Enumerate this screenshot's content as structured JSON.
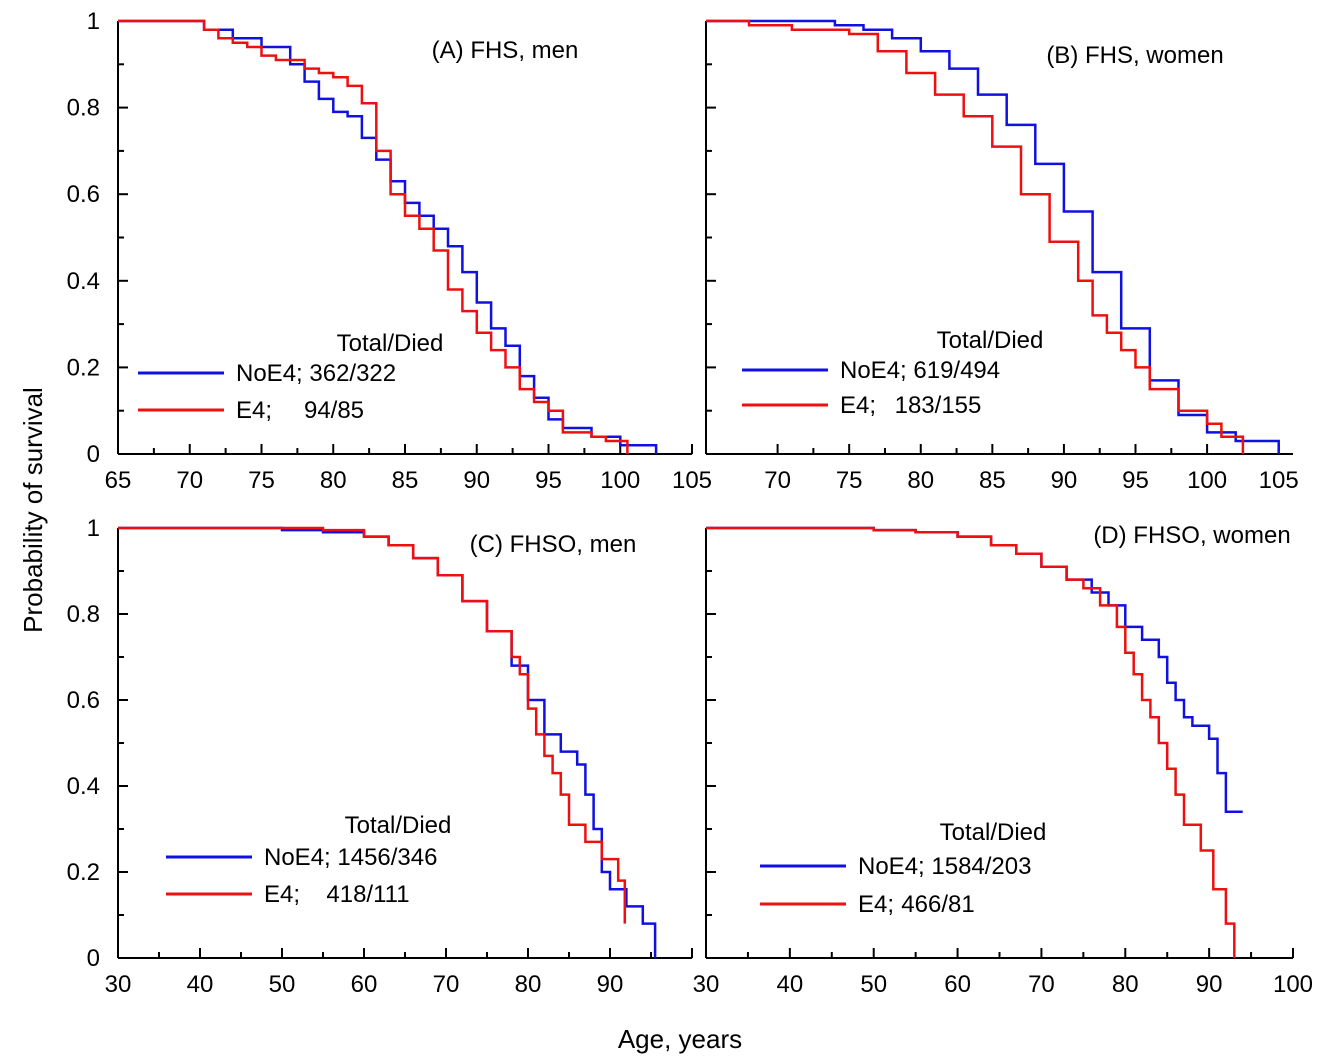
{
  "figure": {
    "ylabel": "Probability of survival",
    "xlabel": "Age, years"
  },
  "chart_data": [
    {
      "type": "line",
      "title": "(A) FHS, men",
      "xlim": [
        65,
        105
      ],
      "ylim": [
        0,
        1
      ],
      "xticks": [
        65,
        70,
        75,
        80,
        85,
        90,
        95,
        100,
        105
      ],
      "xtick_labels": [
        "65",
        "70",
        "75",
        "80",
        "85",
        "90",
        "95",
        "100",
        "105"
      ],
      "yticks": [
        0,
        0.2,
        0.4,
        0.6,
        0.8,
        1
      ],
      "ytick_labels": [
        "0",
        "0.2",
        "0.4",
        "0.6",
        "0.8",
        "1"
      ],
      "legend_header": "Total/Died",
      "legend_position": "bottom-left",
      "grid": false,
      "step": true,
      "series": [
        {
          "name": "NoE4",
          "counts": "362/322",
          "color": "#1010e0",
          "x": [
            65,
            69,
            71,
            73,
            75,
            77,
            78,
            79,
            80,
            81,
            82,
            83,
            84,
            85,
            86,
            87,
            88,
            89,
            90,
            91,
            92,
            93,
            94,
            95,
            96,
            98,
            100,
            102.5
          ],
          "y": [
            1,
            1,
            0.98,
            0.96,
            0.94,
            0.9,
            0.86,
            0.82,
            0.79,
            0.78,
            0.73,
            0.68,
            0.63,
            0.58,
            0.55,
            0.52,
            0.48,
            0.42,
            0.35,
            0.29,
            0.25,
            0.18,
            0.13,
            0.08,
            0.06,
            0.04,
            0.02,
            0
          ]
        },
        {
          "name": "E4",
          "counts": "94/85",
          "color": "#ee1010",
          "x": [
            65,
            70,
            71,
            72,
            73,
            74,
            75,
            76,
            77,
            78,
            79,
            80,
            81,
            82,
            83,
            84,
            85,
            86,
            87,
            88,
            89,
            90,
            91,
            92,
            93,
            94,
            95,
            96,
            97,
            98,
            99,
            100.5
          ],
          "y": [
            1,
            1,
            0.98,
            0.96,
            0.95,
            0.94,
            0.92,
            0.91,
            0.91,
            0.89,
            0.88,
            0.87,
            0.85,
            0.81,
            0.7,
            0.6,
            0.55,
            0.52,
            0.47,
            0.38,
            0.33,
            0.28,
            0.24,
            0.2,
            0.15,
            0.12,
            0.1,
            0.05,
            0.05,
            0.04,
            0.03,
            0
          ]
        }
      ]
    },
    {
      "type": "line",
      "title": "(B) FHS, women",
      "xlim": [
        65,
        106
      ],
      "ylim": [
        0,
        1
      ],
      "xticks": [
        70,
        75,
        80,
        85,
        90,
        95,
        100,
        105
      ],
      "xtick_labels": [
        "70",
        "75",
        "80",
        "85",
        "90",
        "95",
        "100",
        "105"
      ],
      "yticks": [
        0,
        0.2,
        0.4,
        0.6,
        0.8,
        1
      ],
      "ytick_labels": [],
      "legend_header": "Total/Died",
      "legend_position": "bottom-left",
      "grid": false,
      "step": true,
      "series": [
        {
          "name": "NoE4",
          "counts": "619/494",
          "color": "#1010e0",
          "x": [
            65,
            70,
            74,
            76,
            78,
            80,
            82,
            84,
            86,
            88,
            90,
            92,
            94,
            96,
            98,
            100,
            102,
            105
          ],
          "y": [
            1,
            1,
            0.99,
            0.98,
            0.96,
            0.93,
            0.89,
            0.83,
            0.76,
            0.67,
            0.56,
            0.42,
            0.29,
            0.17,
            0.09,
            0.05,
            0.03,
            0
          ]
        },
        {
          "name": "E4",
          "counts": "183/155",
          "color": "#ee1010",
          "x": [
            65,
            68,
            71,
            75,
            77,
            79,
            81,
            83,
            85,
            87,
            89,
            91,
            92,
            93,
            94,
            95,
            96,
            98,
            100,
            101,
            102.5
          ],
          "y": [
            1,
            0.99,
            0.98,
            0.97,
            0.93,
            0.88,
            0.83,
            0.78,
            0.71,
            0.6,
            0.49,
            0.4,
            0.32,
            0.28,
            0.24,
            0.2,
            0.15,
            0.1,
            0.07,
            0.04,
            0
          ]
        }
      ]
    },
    {
      "type": "line",
      "title": "(C) FHSO, men",
      "xlim": [
        30,
        100
      ],
      "ylim": [
        0,
        1
      ],
      "xticks": [
        30,
        40,
        50,
        60,
        70,
        80,
        90,
        100
      ],
      "xtick_labels": [
        "30",
        "40",
        "50",
        "60",
        "70",
        "80",
        "90",
        ""
      ],
      "yticks": [
        0,
        0.2,
        0.4,
        0.6,
        0.8,
        1
      ],
      "ytick_labels": [
        "0",
        "0.2",
        "0.4",
        "0.6",
        "0.8",
        "1"
      ],
      "legend_header": "Total/Died",
      "legend_position": "bottom-left",
      "grid": false,
      "step": true,
      "series": [
        {
          "name": "NoE4",
          "counts": "1456/346",
          "color": "#1010e0",
          "x": [
            30,
            45,
            50,
            55,
            60,
            63,
            66,
            69,
            72,
            75,
            78,
            80,
            82,
            84,
            86,
            87,
            88,
            89,
            90,
            92,
            94,
            95.5
          ],
          "y": [
            1,
            1,
            0.995,
            0.99,
            0.98,
            0.96,
            0.93,
            0.89,
            0.83,
            0.76,
            0.68,
            0.6,
            0.52,
            0.48,
            0.45,
            0.38,
            0.3,
            0.2,
            0.16,
            0.12,
            0.08,
            0
          ]
        },
        {
          "name": "E4",
          "counts": "418/111",
          "color": "#ee1010",
          "x": [
            30,
            44,
            50,
            55,
            60,
            63,
            66,
            69,
            72,
            75,
            78,
            79,
            80,
            81,
            82,
            83,
            84,
            85,
            87,
            89,
            91,
            91.8
          ],
          "y": [
            1,
            1,
            1,
            0.995,
            0.98,
            0.96,
            0.93,
            0.89,
            0.83,
            0.76,
            0.7,
            0.66,
            0.58,
            0.52,
            0.47,
            0.43,
            0.38,
            0.31,
            0.27,
            0.23,
            0.18,
            0.08
          ]
        }
      ]
    },
    {
      "type": "line",
      "title": "(D) FHSO, women",
      "xlim": [
        30,
        100
      ],
      "ylim": [
        0,
        1
      ],
      "xticks": [
        30,
        40,
        50,
        60,
        70,
        80,
        90,
        100
      ],
      "xtick_labels": [
        "30",
        "40",
        "50",
        "60",
        "70",
        "80",
        "90",
        "100"
      ],
      "yticks": [
        0,
        0.2,
        0.4,
        0.6,
        0.8,
        1
      ],
      "ytick_labels": [],
      "legend_header": "Total/Died",
      "legend_position": "bottom-left",
      "grid": false,
      "step": true,
      "series": [
        {
          "name": "NoE4",
          "counts": "1584/203",
          "color": "#1010e0",
          "x": [
            30,
            50,
            55,
            60,
            64,
            67,
            70,
            73,
            76,
            78,
            80,
            82,
            84,
            85,
            86,
            87,
            88,
            90,
            91,
            92,
            94
          ],
          "y": [
            1,
            0.995,
            0.99,
            0.98,
            0.96,
            0.94,
            0.91,
            0.88,
            0.85,
            0.82,
            0.77,
            0.74,
            0.7,
            0.64,
            0.6,
            0.56,
            0.54,
            0.51,
            0.43,
            0.34,
            0.34
          ]
        },
        {
          "name": "E4",
          "counts": "466/81",
          "color": "#ee1010",
          "x": [
            30,
            38,
            50,
            55,
            60,
            64,
            67,
            70,
            73,
            75,
            77,
            79,
            80,
            81,
            82,
            83,
            84,
            85,
            86,
            87,
            89,
            90.5,
            92,
            93
          ],
          "y": [
            1,
            1,
            0.995,
            0.99,
            0.98,
            0.96,
            0.94,
            0.91,
            0.88,
            0.86,
            0.82,
            0.77,
            0.71,
            0.66,
            0.6,
            0.56,
            0.5,
            0.44,
            0.38,
            0.31,
            0.25,
            0.16,
            0.08,
            0
          ]
        }
      ]
    }
  ]
}
